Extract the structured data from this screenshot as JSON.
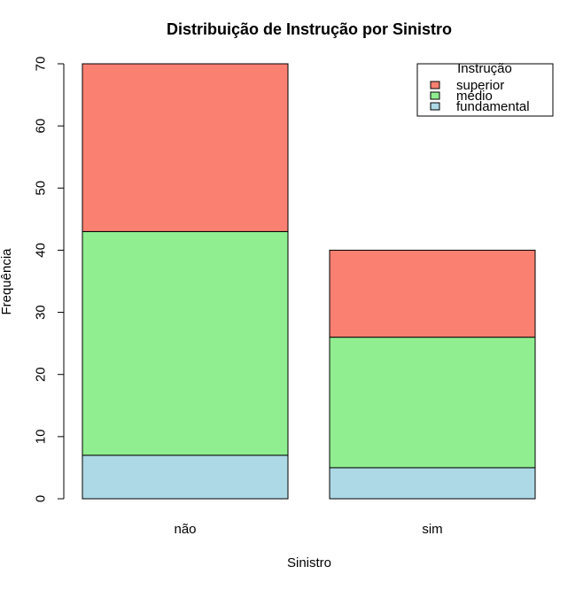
{
  "chart_data": {
    "type": "bar",
    "stacked": true,
    "title": "Distribuição de Instrução por Sinistro",
    "xlabel": "Sinistro",
    "ylabel": "Frequência",
    "categories": [
      "não",
      "sim"
    ],
    "ylim": [
      0,
      70
    ],
    "yticks": [
      0,
      10,
      20,
      30,
      40,
      50,
      60,
      70
    ],
    "series": [
      {
        "name": "fundamental",
        "values": [
          7,
          5
        ],
        "color": "#add8e6"
      },
      {
        "name": "médio",
        "values": [
          36,
          21
        ],
        "color": "#90ee90"
      },
      {
        "name": "superior",
        "values": [
          27,
          14
        ],
        "color": "#fa8072"
      }
    ],
    "legend": {
      "title": "Instrução",
      "position": "top-right",
      "order": [
        "superior",
        "médio",
        "fundamental"
      ]
    },
    "grid": false
  }
}
